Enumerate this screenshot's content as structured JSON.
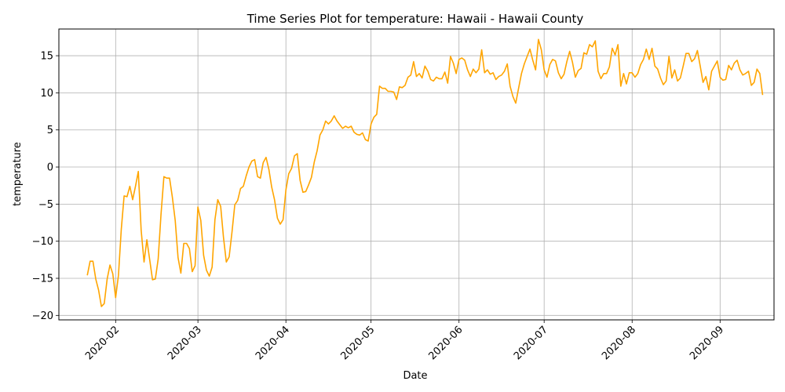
{
  "chart_data": {
    "type": "line",
    "title": "Time Series Plot for temperature: Hawaii - Hawaii County",
    "xlabel": "Date",
    "ylabel": "temperature",
    "x_start": "2020-01-22",
    "x_step_days": 1,
    "xlim": [
      "2020-01-12",
      "2020-09-20"
    ],
    "ylim": [
      -20.6,
      18.6
    ],
    "x_ticks": [
      "2020-02",
      "2020-03",
      "2020-04",
      "2020-05",
      "2020-06",
      "2020-07",
      "2020-08",
      "2020-09"
    ],
    "y_ticks": [
      -20,
      -15,
      -10,
      -5,
      0,
      5,
      10,
      15
    ],
    "grid": true,
    "legend": "none",
    "series": [
      {
        "name": "",
        "color": "#ffa500",
        "values": [
          -14.6,
          -12.7,
          -12.7,
          -15.1,
          -16.6,
          -18.8,
          -18.4,
          -15.1,
          -13.2,
          -14.4,
          -17.6,
          -14.6,
          -8.4,
          -3.9,
          -4.0,
          -2.6,
          -4.4,
          -2.6,
          -0.6,
          -8.5,
          -12.8,
          -9.8,
          -12.5,
          -15.2,
          -15.1,
          -12.4,
          -6.4,
          -1.3,
          -1.5,
          -1.5,
          -4.1,
          -7.2,
          -12.2,
          -14.3,
          -10.3,
          -10.3,
          -11.0,
          -14.1,
          -13.3,
          -5.4,
          -7.2,
          -11.9,
          -13.9,
          -14.7,
          -13.5,
          -7.1,
          -4.4,
          -5.3,
          -9.5,
          -12.8,
          -12.1,
          -8.8,
          -5.1,
          -4.5,
          -2.9,
          -2.6,
          -1.2,
          0.0,
          0.8,
          1.0,
          -1.3,
          -1.5,
          0.6,
          1.3,
          -0.3,
          -2.7,
          -4.4,
          -6.9,
          -7.7,
          -7.1,
          -3.1,
          -0.9,
          -0.2,
          1.5,
          1.8,
          -1.8,
          -3.4,
          -3.3,
          -2.4,
          -1.4,
          0.7,
          2.2,
          4.3,
          5.0,
          6.2,
          5.8,
          6.2,
          6.9,
          6.2,
          5.7,
          5.2,
          5.5,
          5.3,
          5.5,
          4.7,
          4.4,
          4.3,
          4.6,
          3.7,
          3.5,
          5.8,
          6.7,
          7.1,
          10.9,
          10.6,
          10.6,
          10.2,
          10.2,
          10.1,
          9.1,
          10.8,
          10.7,
          11.0,
          12.1,
          12.4,
          14.2,
          12.2,
          12.6,
          12.0,
          13.6,
          12.9,
          11.8,
          11.6,
          12.1,
          11.9,
          11.9,
          12.8,
          11.3,
          14.9,
          14.0,
          12.6,
          14.5,
          14.7,
          14.4,
          13.1,
          12.2,
          13.2,
          12.7,
          13.2,
          15.8,
          12.7,
          13.1,
          12.5,
          12.7,
          11.8,
          12.2,
          12.4,
          12.9,
          13.9,
          10.9,
          9.5,
          8.6,
          10.6,
          12.6,
          13.9,
          14.9,
          15.9,
          14.4,
          13.1,
          17.2,
          15.8,
          13.1,
          12.1,
          13.8,
          14.5,
          14.3,
          12.7,
          11.9,
          12.5,
          14.2,
          15.6,
          14.1,
          12.1,
          13.0,
          13.3,
          15.4,
          15.2,
          16.5,
          16.2,
          17.0,
          12.9,
          11.9,
          12.6,
          12.6,
          13.5,
          16.0,
          15.1,
          16.5,
          10.9,
          12.6,
          11.2,
          12.7,
          12.7,
          12.1,
          12.6,
          13.8,
          14.5,
          15.9,
          14.5,
          16.0,
          13.6,
          13.2,
          12.0,
          11.1,
          11.6,
          14.9,
          12.0,
          13.1,
          11.6,
          12.0,
          13.6,
          15.3,
          15.3,
          14.2,
          14.6,
          15.7,
          13.6,
          11.4,
          12.2,
          10.4,
          12.9,
          13.6,
          14.3,
          12.1,
          11.7,
          11.8,
          13.7,
          13.1,
          14.0,
          14.4,
          13.1,
          12.4,
          12.6,
          12.9,
          11.0,
          11.4,
          13.2,
          12.6,
          9.7
        ]
      }
    ]
  }
}
